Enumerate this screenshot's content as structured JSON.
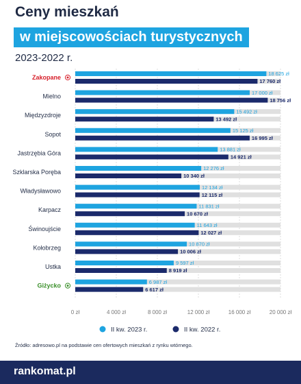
{
  "header": {
    "title_line1": "Ceny mieszkań",
    "title_line2": "w miejscowościach turystycznych",
    "subtitle": "2023-2022 r."
  },
  "source": "Źródło: adresowo.pl na podstawie cen ofertowych mieszkań z rynku wtórnego.",
  "footer": {
    "brand": "rankomat.pl"
  },
  "colors": {
    "series_2023": "#1ea4e0",
    "series_2022": "#1b2a6b",
    "track": "#e0e0e0",
    "highlight_top": "#d7202b",
    "highlight_bottom": "#3a8f2a",
    "label_default": "#1f2a44"
  },
  "chart_data": {
    "type": "bar",
    "orientation": "horizontal",
    "categories": [
      "Zakopane",
      "Mielno",
      "Międzyzdroje",
      "Sopot",
      "Jastrzębia Góra",
      "Szklarska Poręba",
      "Władysławowo",
      "Karpacz",
      "Świnoujście",
      "Kołobrzeg",
      "Ustka",
      "Giżycko"
    ],
    "category_highlight": [
      "top",
      "none",
      "none",
      "none",
      "none",
      "none",
      "none",
      "none",
      "none",
      "none",
      "none",
      "bottom"
    ],
    "series": [
      {
        "name": "II kw. 2023 r.",
        "values": [
          18625,
          17000,
          15492,
          15125,
          13881,
          12276,
          12134,
          11831,
          11643,
          10870,
          9597,
          6987
        ],
        "labels": [
          "18 625 zł",
          "17 000 zł",
          "15 492 zł",
          "15 125 zł",
          "13 881 zł",
          "12 276 zł",
          "12 134 zł",
          "11 831 zł",
          "11 643 zł",
          "10 870 zł",
          "9 597 zł",
          "6 987 zł"
        ]
      },
      {
        "name": "II kw. 2022 r.",
        "values": [
          17760,
          18756,
          13492,
          16995,
          14921,
          10340,
          12115,
          10670,
          12027,
          10006,
          8919,
          6617
        ],
        "labels": [
          "17 760 zł",
          "18 756 zł",
          "13 492 zł",
          "16 995 zł",
          "14 921 zł",
          "10 340 zł",
          "12 115 zł",
          "10 670 zł",
          "12 027 zł",
          "10 006 zł",
          "8 919 zł",
          "6 617 zł"
        ]
      }
    ],
    "xlim": [
      0,
      20000
    ],
    "xticks": [
      0,
      4000,
      8000,
      12000,
      16000,
      20000
    ],
    "xtick_labels": [
      "0 zł",
      "4 000 zł",
      "8 000 zł",
      "12 000 zł",
      "16 000 zł",
      "20 000 zł"
    ],
    "grid": true,
    "legend": "bottom-center"
  }
}
